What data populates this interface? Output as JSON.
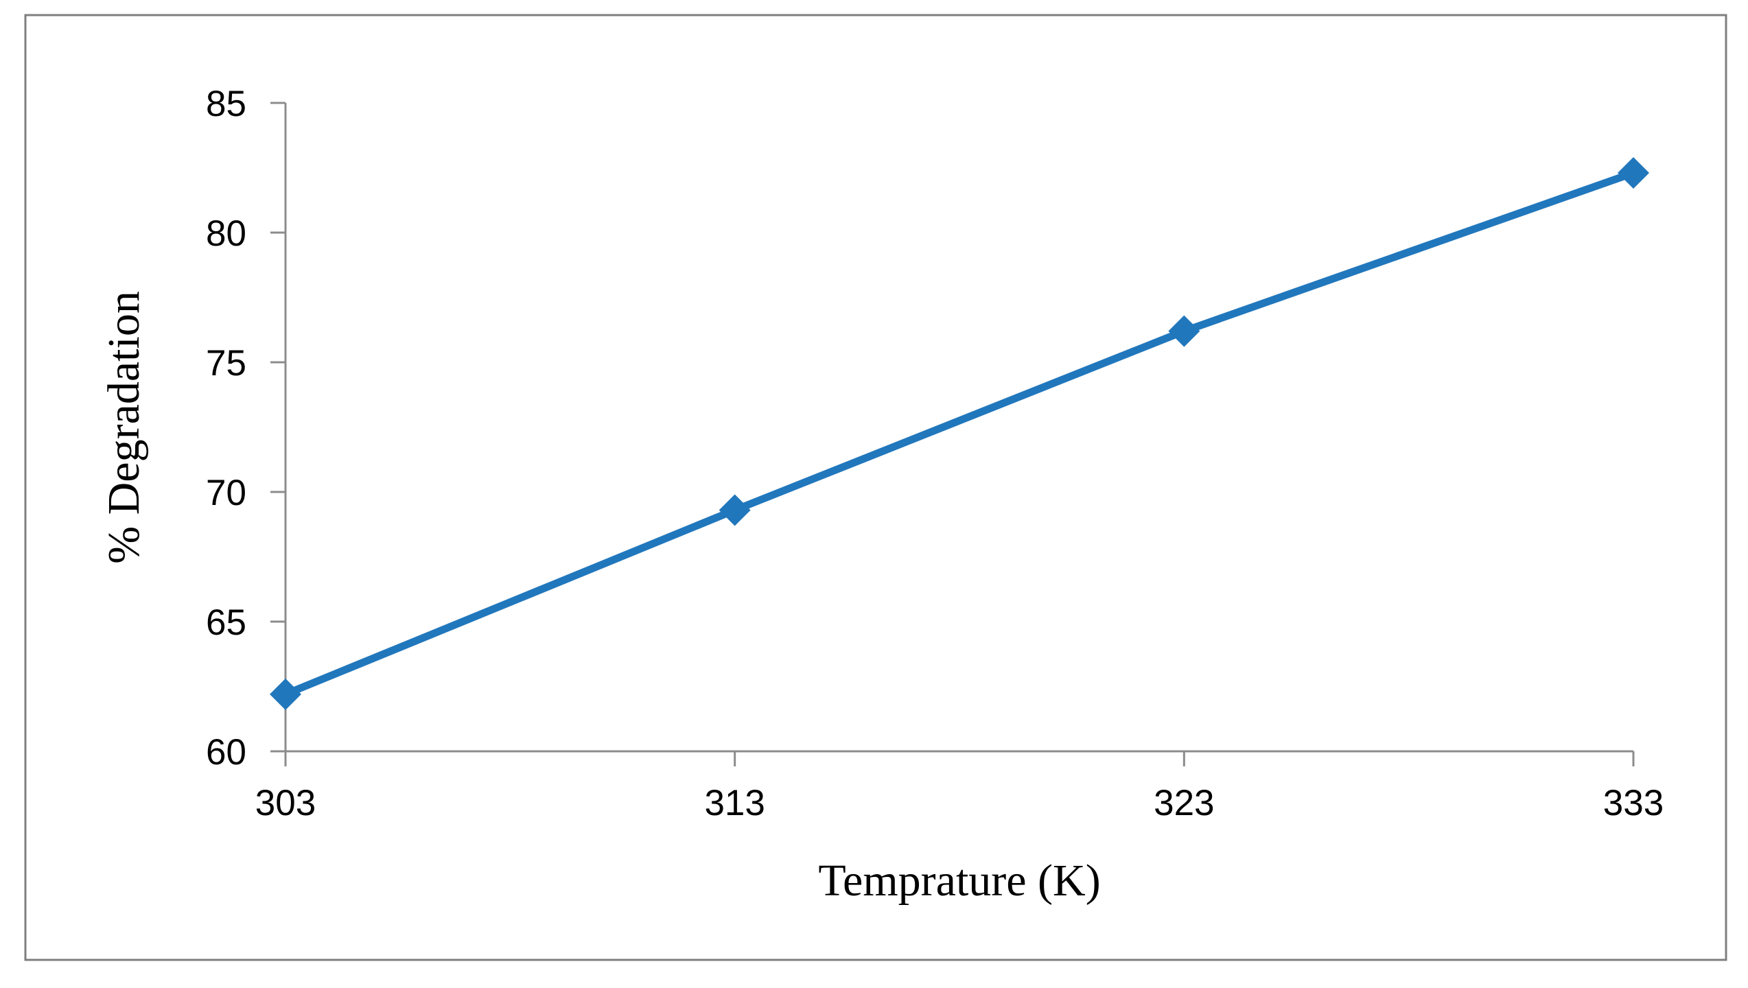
{
  "chart_data": {
    "type": "line",
    "title": "",
    "xlabel": "Temprature  (K)",
    "ylabel": "% Degradation",
    "x": [
      303,
      313,
      323,
      333
    ],
    "x_tick_labels": [
      "303",
      "313",
      "323",
      "333"
    ],
    "y_tick_labels": [
      "60",
      "65",
      "70",
      "75",
      "80",
      "85"
    ],
    "ylim": [
      60,
      85
    ],
    "y_ticks": [
      60,
      65,
      70,
      75,
      80,
      85
    ],
    "grid": false,
    "legend": "none",
    "series": [
      {
        "values": [
          62.2,
          69.3,
          76.2,
          82.3
        ],
        "color": "#2177bc",
        "marker": "diamond"
      }
    ],
    "axis_color": "#8c8c8c",
    "frame_color": "#7f7f7f"
  }
}
